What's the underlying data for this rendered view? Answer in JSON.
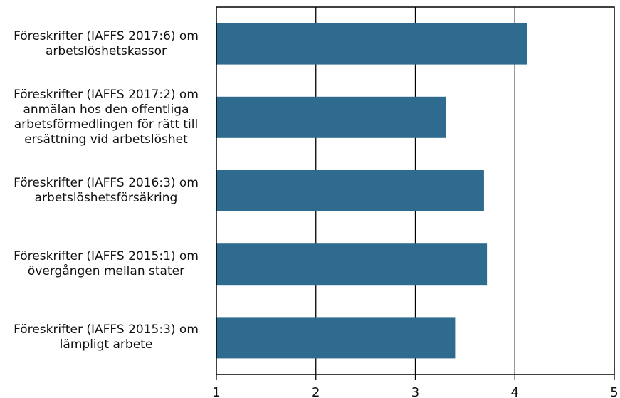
{
  "chart_data": {
    "type": "bar",
    "orientation": "horizontal",
    "categories": [
      [
        "Föreskrifter (IAFFS 2017:6) om",
        "arbetslöshetskassor"
      ],
      [
        "Föreskrifter (IAFFS 2017:2) om",
        "anmälan hos den offentliga",
        "arbetsförmedlingen för rätt till",
        "ersättning vid arbetslöshet"
      ],
      [
        "Föreskrifter (IAFFS 2016:3) om",
        "arbetslöshetsförsäkring"
      ],
      [
        "Föreskrifter (IAFFS 2015:1) om",
        "övergången mellan stater"
      ],
      [
        "Föreskrifter (IAFFS 2015:3) om",
        "lämpligt arbete"
      ]
    ],
    "values": [
      4.12,
      3.31,
      3.69,
      3.72,
      3.4
    ],
    "xlim": [
      1,
      5
    ],
    "xticks": [
      "1",
      "2",
      "3",
      "4",
      "5"
    ],
    "grid": "vertical",
    "bar_color": "#2e6b8e",
    "title": "",
    "xlabel": "",
    "ylabel": ""
  }
}
